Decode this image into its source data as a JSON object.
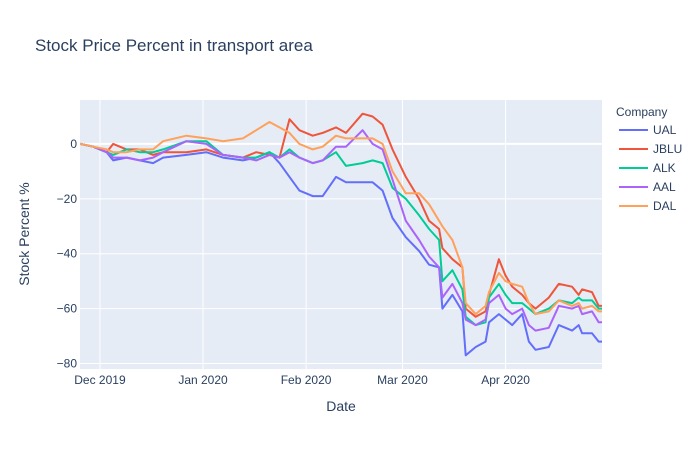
{
  "chart_data": {
    "type": "line",
    "title": "Stock Price Percent in transport area",
    "xlabel": "Date",
    "ylabel": "Stock Percent %",
    "x_range": [
      "2019-11-25",
      "2020-04-30"
    ],
    "ylim": [
      -82,
      16
    ],
    "x_tick_dates": [
      "2019-12-01",
      "2020-01-01",
      "2020-02-01",
      "2020-03-01",
      "2020-04-01"
    ],
    "x_tick_labels": [
      "Dec 2019",
      "Jan 2020",
      "Feb 2020",
      "Mar 2020",
      "Apr 2020"
    ],
    "y_ticks": [
      0,
      -20,
      -40,
      -60,
      -80
    ],
    "y_tick_labels": [
      "0",
      "−20",
      "−40",
      "−60",
      "−80"
    ],
    "grid": true,
    "plot_background": "#E5ECF6",
    "legend": {
      "title": "Company",
      "placement": "right"
    },
    "series": [
      {
        "name": "UAL",
        "color": "#636EFA",
        "points": [
          [
            "2019-11-25",
            0
          ],
          [
            "2019-11-29",
            -1
          ],
          [
            "2019-12-03",
            -3
          ],
          [
            "2019-12-05",
            -6
          ],
          [
            "2019-12-09",
            -5
          ],
          [
            "2019-12-13",
            -6
          ],
          [
            "2019-12-17",
            -7
          ],
          [
            "2019-12-20",
            -5
          ],
          [
            "2019-12-27",
            -4
          ],
          [
            "2020-01-02",
            -3
          ],
          [
            "2020-01-07",
            -5
          ],
          [
            "2020-01-13",
            -6
          ],
          [
            "2020-01-17",
            -5
          ],
          [
            "2020-01-21",
            -3
          ],
          [
            "2020-01-24",
            -7
          ],
          [
            "2020-01-27",
            -12
          ],
          [
            "2020-01-30",
            -17
          ],
          [
            "2020-02-03",
            -19
          ],
          [
            "2020-02-06",
            -19
          ],
          [
            "2020-02-10",
            -12
          ],
          [
            "2020-02-13",
            -14
          ],
          [
            "2020-02-18",
            -14
          ],
          [
            "2020-02-21",
            -14
          ],
          [
            "2020-02-24",
            -17
          ],
          [
            "2020-02-27",
            -27
          ],
          [
            "2020-03-02",
            -34
          ],
          [
            "2020-03-06",
            -39
          ],
          [
            "2020-03-09",
            -44
          ],
          [
            "2020-03-12",
            -45
          ],
          [
            "2020-03-13",
            -60
          ],
          [
            "2020-03-16",
            -55
          ],
          [
            "2020-03-19",
            -61
          ],
          [
            "2020-03-20",
            -77
          ],
          [
            "2020-03-23",
            -74
          ],
          [
            "2020-03-26",
            -72
          ],
          [
            "2020-03-27",
            -65
          ],
          [
            "2020-03-30",
            -62
          ],
          [
            "2020-04-01",
            -64
          ],
          [
            "2020-04-03",
            -66
          ],
          [
            "2020-04-06",
            -62
          ],
          [
            "2020-04-08",
            -72
          ],
          [
            "2020-04-10",
            -75
          ],
          [
            "2020-04-14",
            -74
          ],
          [
            "2020-04-17",
            -66
          ],
          [
            "2020-04-21",
            -68
          ],
          [
            "2020-04-23",
            -66
          ],
          [
            "2020-04-24",
            -69
          ],
          [
            "2020-04-27",
            -69
          ],
          [
            "2020-04-29",
            -72
          ],
          [
            "2020-04-30",
            -72
          ]
        ]
      },
      {
        "name": "JBLU",
        "color": "#EF553B",
        "points": [
          [
            "2019-11-25",
            0
          ],
          [
            "2019-11-29",
            -1
          ],
          [
            "2019-12-03",
            -3
          ],
          [
            "2019-12-05",
            0
          ],
          [
            "2019-12-09",
            -2
          ],
          [
            "2019-12-13",
            -2
          ],
          [
            "2019-12-17",
            -4
          ],
          [
            "2019-12-20",
            -3
          ],
          [
            "2019-12-27",
            -3
          ],
          [
            "2020-01-02",
            -2
          ],
          [
            "2020-01-07",
            -4
          ],
          [
            "2020-01-13",
            -5
          ],
          [
            "2020-01-17",
            -3
          ],
          [
            "2020-01-21",
            -4
          ],
          [
            "2020-01-24",
            -5
          ],
          [
            "2020-01-27",
            9
          ],
          [
            "2020-01-30",
            5
          ],
          [
            "2020-02-03",
            3
          ],
          [
            "2020-02-06",
            4
          ],
          [
            "2020-02-10",
            6
          ],
          [
            "2020-02-13",
            4
          ],
          [
            "2020-02-18",
            11
          ],
          [
            "2020-02-21",
            10
          ],
          [
            "2020-02-24",
            7
          ],
          [
            "2020-02-27",
            -2
          ],
          [
            "2020-03-02",
            -12
          ],
          [
            "2020-03-06",
            -20
          ],
          [
            "2020-03-09",
            -28
          ],
          [
            "2020-03-12",
            -31
          ],
          [
            "2020-03-13",
            -38
          ],
          [
            "2020-03-16",
            -42
          ],
          [
            "2020-03-19",
            -45
          ],
          [
            "2020-03-20",
            -60
          ],
          [
            "2020-03-23",
            -63
          ],
          [
            "2020-03-26",
            -61
          ],
          [
            "2020-03-27",
            -55
          ],
          [
            "2020-03-30",
            -42
          ],
          [
            "2020-04-01",
            -48
          ],
          [
            "2020-04-03",
            -52
          ],
          [
            "2020-04-06",
            -55
          ],
          [
            "2020-04-08",
            -58
          ],
          [
            "2020-04-10",
            -60
          ],
          [
            "2020-04-14",
            -56
          ],
          [
            "2020-04-17",
            -51
          ],
          [
            "2020-04-21",
            -52
          ],
          [
            "2020-04-23",
            -55
          ],
          [
            "2020-04-24",
            -53
          ],
          [
            "2020-04-27",
            -54
          ],
          [
            "2020-04-29",
            -59
          ],
          [
            "2020-04-30",
            -59
          ]
        ]
      },
      {
        "name": "ALK",
        "color": "#00CC96",
        "points": [
          [
            "2019-11-25",
            0
          ],
          [
            "2019-11-29",
            -1
          ],
          [
            "2019-12-03",
            -3
          ],
          [
            "2019-12-05",
            -4
          ],
          [
            "2019-12-09",
            -2
          ],
          [
            "2019-12-13",
            -3
          ],
          [
            "2019-12-17",
            -3
          ],
          [
            "2019-12-20",
            -2
          ],
          [
            "2019-12-27",
            1
          ],
          [
            "2020-01-02",
            1
          ],
          [
            "2020-01-07",
            -4
          ],
          [
            "2020-01-13",
            -5
          ],
          [
            "2020-01-17",
            -5
          ],
          [
            "2020-01-21",
            -3
          ],
          [
            "2020-01-24",
            -5
          ],
          [
            "2020-01-27",
            -2
          ],
          [
            "2020-01-30",
            -5
          ],
          [
            "2020-02-03",
            -7
          ],
          [
            "2020-02-06",
            -6
          ],
          [
            "2020-02-10",
            -3
          ],
          [
            "2020-02-13",
            -8
          ],
          [
            "2020-02-18",
            -7
          ],
          [
            "2020-02-21",
            -6
          ],
          [
            "2020-02-24",
            -7
          ],
          [
            "2020-02-27",
            -16
          ],
          [
            "2020-03-02",
            -20
          ],
          [
            "2020-03-06",
            -26
          ],
          [
            "2020-03-09",
            -31
          ],
          [
            "2020-03-12",
            -35
          ],
          [
            "2020-03-13",
            -50
          ],
          [
            "2020-03-16",
            -46
          ],
          [
            "2020-03-19",
            -53
          ],
          [
            "2020-03-20",
            -63
          ],
          [
            "2020-03-23",
            -66
          ],
          [
            "2020-03-26",
            -65
          ],
          [
            "2020-03-27",
            -56
          ],
          [
            "2020-03-30",
            -51
          ],
          [
            "2020-04-01",
            -55
          ],
          [
            "2020-04-03",
            -58
          ],
          [
            "2020-04-06",
            -58
          ],
          [
            "2020-04-08",
            -60
          ],
          [
            "2020-04-10",
            -62
          ],
          [
            "2020-04-14",
            -60
          ],
          [
            "2020-04-17",
            -57
          ],
          [
            "2020-04-21",
            -58
          ],
          [
            "2020-04-23",
            -56
          ],
          [
            "2020-04-24",
            -57
          ],
          [
            "2020-04-27",
            -57
          ],
          [
            "2020-04-29",
            -60
          ],
          [
            "2020-04-30",
            -60
          ]
        ]
      },
      {
        "name": "AAL",
        "color": "#AB63FA",
        "points": [
          [
            "2019-11-25",
            0
          ],
          [
            "2019-11-29",
            -1
          ],
          [
            "2019-12-03",
            -3
          ],
          [
            "2019-12-05",
            -5
          ],
          [
            "2019-12-09",
            -5
          ],
          [
            "2019-12-13",
            -6
          ],
          [
            "2019-12-17",
            -5
          ],
          [
            "2019-12-20",
            -3
          ],
          [
            "2019-12-27",
            1
          ],
          [
            "2020-01-02",
            0
          ],
          [
            "2020-01-07",
            -4
          ],
          [
            "2020-01-13",
            -5
          ],
          [
            "2020-01-17",
            -6
          ],
          [
            "2020-01-21",
            -4
          ],
          [
            "2020-01-24",
            -5
          ],
          [
            "2020-01-27",
            -3
          ],
          [
            "2020-01-30",
            -5
          ],
          [
            "2020-02-03",
            -7
          ],
          [
            "2020-02-06",
            -6
          ],
          [
            "2020-02-10",
            -1
          ],
          [
            "2020-02-13",
            -1
          ],
          [
            "2020-02-18",
            5
          ],
          [
            "2020-02-21",
            0
          ],
          [
            "2020-02-24",
            -2
          ],
          [
            "2020-02-27",
            -13
          ],
          [
            "2020-03-02",
            -28
          ],
          [
            "2020-03-06",
            -35
          ],
          [
            "2020-03-09",
            -41
          ],
          [
            "2020-03-12",
            -45
          ],
          [
            "2020-03-13",
            -56
          ],
          [
            "2020-03-16",
            -51
          ],
          [
            "2020-03-19",
            -58
          ],
          [
            "2020-03-20",
            -64
          ],
          [
            "2020-03-23",
            -66
          ],
          [
            "2020-03-26",
            -64
          ],
          [
            "2020-03-27",
            -58
          ],
          [
            "2020-03-30",
            -55
          ],
          [
            "2020-04-01",
            -60
          ],
          [
            "2020-04-03",
            -62
          ],
          [
            "2020-04-06",
            -60
          ],
          [
            "2020-04-08",
            -66
          ],
          [
            "2020-04-10",
            -68
          ],
          [
            "2020-04-14",
            -67
          ],
          [
            "2020-04-17",
            -59
          ],
          [
            "2020-04-21",
            -60
          ],
          [
            "2020-04-23",
            -59
          ],
          [
            "2020-04-24",
            -62
          ],
          [
            "2020-04-27",
            -61
          ],
          [
            "2020-04-29",
            -65
          ],
          [
            "2020-04-30",
            -65
          ]
        ]
      },
      {
        "name": "DAL",
        "color": "#FFA15A",
        "points": [
          [
            "2019-11-25",
            0
          ],
          [
            "2019-11-29",
            -1
          ],
          [
            "2019-12-03",
            -2
          ],
          [
            "2019-12-05",
            -3
          ],
          [
            "2019-12-09",
            -3
          ],
          [
            "2019-12-13",
            -2
          ],
          [
            "2019-12-17",
            -2
          ],
          [
            "2019-12-20",
            1
          ],
          [
            "2019-12-27",
            3
          ],
          [
            "2020-01-02",
            2
          ],
          [
            "2020-01-07",
            1
          ],
          [
            "2020-01-13",
            2
          ],
          [
            "2020-01-17",
            5
          ],
          [
            "2020-01-21",
            8
          ],
          [
            "2020-01-24",
            6
          ],
          [
            "2020-01-27",
            4
          ],
          [
            "2020-01-30",
            0
          ],
          [
            "2020-02-03",
            -2
          ],
          [
            "2020-02-06",
            -1
          ],
          [
            "2020-02-10",
            3
          ],
          [
            "2020-02-13",
            2
          ],
          [
            "2020-02-18",
            2
          ],
          [
            "2020-02-21",
            2
          ],
          [
            "2020-02-24",
            0
          ],
          [
            "2020-02-27",
            -10
          ],
          [
            "2020-03-02",
            -18
          ],
          [
            "2020-03-06",
            -18
          ],
          [
            "2020-03-09",
            -22
          ],
          [
            "2020-03-12",
            -28
          ],
          [
            "2020-03-13",
            -30
          ],
          [
            "2020-03-16",
            -35
          ],
          [
            "2020-03-19",
            -45
          ],
          [
            "2020-03-20",
            -58
          ],
          [
            "2020-03-23",
            -62
          ],
          [
            "2020-03-26",
            -59
          ],
          [
            "2020-03-27",
            -54
          ],
          [
            "2020-03-30",
            -47
          ],
          [
            "2020-04-01",
            -50
          ],
          [
            "2020-04-03",
            -51
          ],
          [
            "2020-04-06",
            -52
          ],
          [
            "2020-04-08",
            -58
          ],
          [
            "2020-04-10",
            -62
          ],
          [
            "2020-04-14",
            -61
          ],
          [
            "2020-04-17",
            -57
          ],
          [
            "2020-04-21",
            -59
          ],
          [
            "2020-04-23",
            -58
          ],
          [
            "2020-04-24",
            -60
          ],
          [
            "2020-04-27",
            -59
          ],
          [
            "2020-04-29",
            -61
          ],
          [
            "2020-04-30",
            -61
          ]
        ]
      }
    ]
  }
}
